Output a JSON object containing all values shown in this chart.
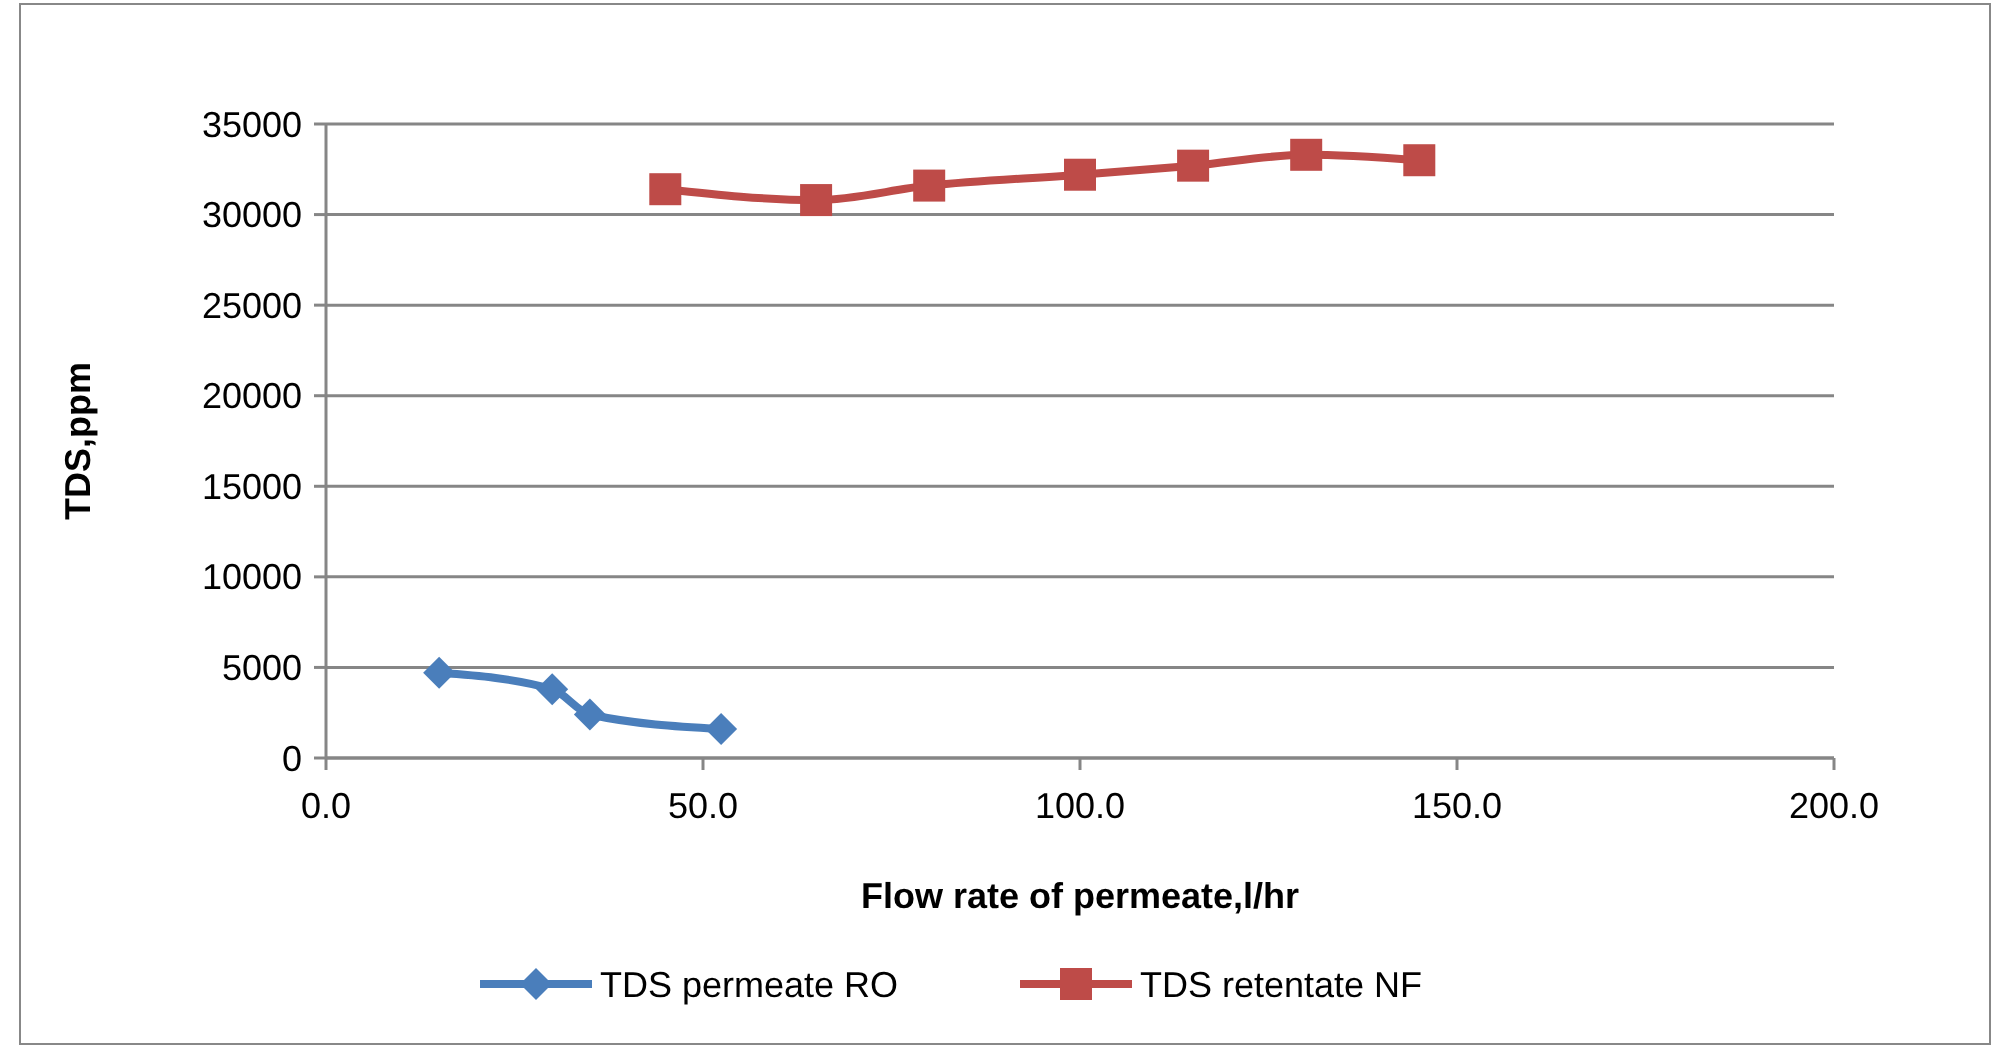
{
  "chart_data": {
    "type": "line",
    "xlabel": "Flow rate of permeate,l/hr",
    "ylabel": "TDS,ppm",
    "xlim": [
      0,
      200
    ],
    "xticks": [
      {
        "value": 0,
        "label": "0.0"
      },
      {
        "value": 50,
        "label": "50.0"
      },
      {
        "value": 100,
        "label": "100.0"
      },
      {
        "value": 150,
        "label": "150.0"
      },
      {
        "value": 200,
        "label": "200.0"
      }
    ],
    "ylim": [
      0,
      35000
    ],
    "yticks": [
      0,
      5000,
      10000,
      15000,
      20000,
      25000,
      30000,
      35000
    ],
    "grid": "y",
    "legend": "bottom",
    "series": [
      {
        "name": "TDS permeate RO",
        "color": "#4a7ebb",
        "marker": "diamond",
        "x": [
          15,
          30,
          35,
          52.4
        ],
        "values": [
          4700,
          3800,
          2400,
          1600
        ]
      },
      {
        "name": "TDS retentate NF",
        "color": "#be4b48",
        "marker": "square",
        "x": [
          45,
          65,
          80,
          100,
          115,
          130,
          145
        ],
        "values": [
          31400,
          30800,
          31600,
          32200,
          32700,
          33300,
          33000
        ]
      }
    ]
  }
}
